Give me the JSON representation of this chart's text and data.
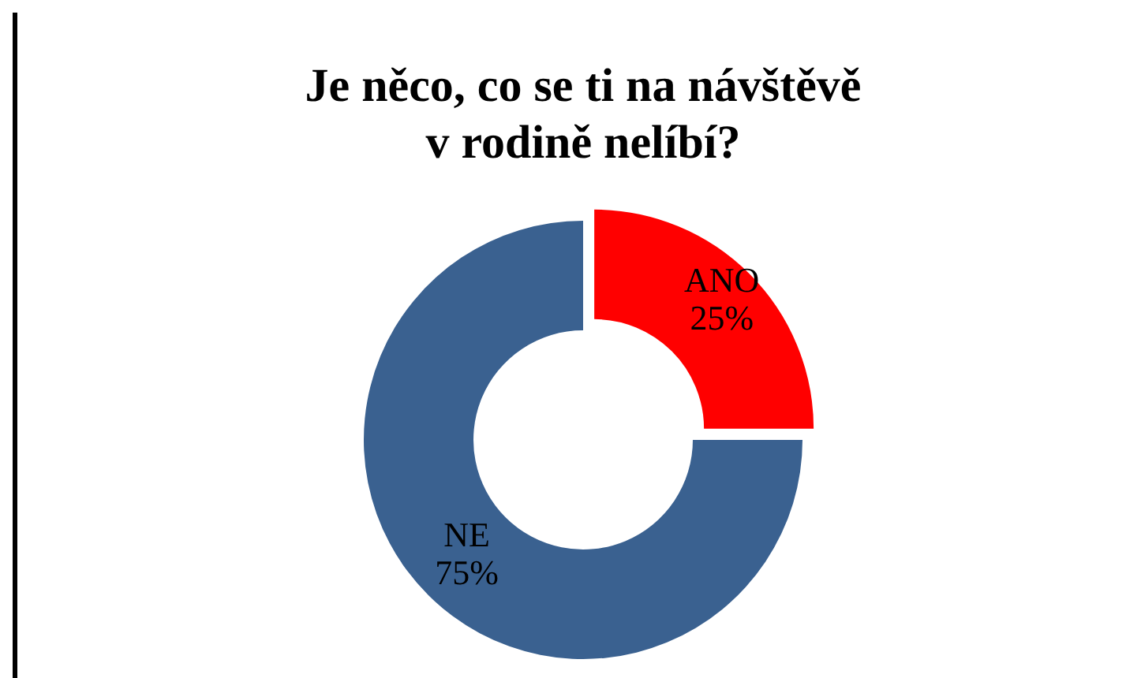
{
  "chart_data": {
    "type": "donut",
    "title": "Je něco, co se ti na návštěvě\nv rodině nelíbí?",
    "categories": [
      "ANO",
      "NE"
    ],
    "values": [
      25,
      75
    ],
    "colors": [
      "#ff0000",
      "#3a6190"
    ],
    "value_labels": [
      "25%",
      "75%"
    ],
    "legend": false
  }
}
